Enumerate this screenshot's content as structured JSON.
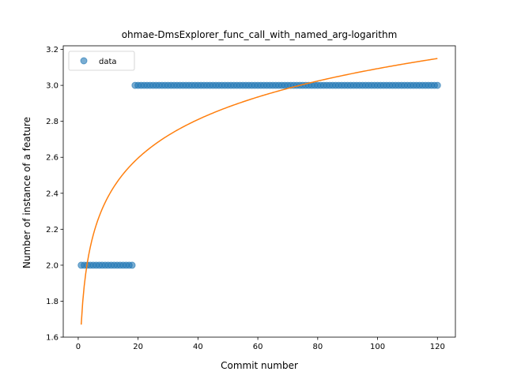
{
  "chart_data": {
    "type": "scatter",
    "title": "ohmae-DmsExplorer_func_call_with_named_arg-logarithm",
    "xlabel": "Commit number",
    "ylabel": "Number of instance of a feature",
    "xlim": [
      -5,
      126
    ],
    "ylim": [
      1.6,
      3.22
    ],
    "xticks": [
      0,
      20,
      40,
      60,
      80,
      100,
      120
    ],
    "yticks": [
      1.6,
      1.8,
      2.0,
      2.2,
      2.4,
      2.6,
      2.8,
      3.0,
      3.2
    ],
    "xtick_labels": [
      "0",
      "20",
      "40",
      "60",
      "80",
      "100",
      "120"
    ],
    "ytick_labels": [
      "1.6",
      "1.8",
      "2.0",
      "2.2",
      "2.4",
      "2.6",
      "2.8",
      "3.0",
      "3.2"
    ],
    "grid": false,
    "legend": {
      "position": "top-left",
      "entries": [
        "data"
      ]
    },
    "series": [
      {
        "name": "data",
        "kind": "scatter",
        "color": "#1f77b4",
        "segments": [
          {
            "x_start": 1,
            "x_end": 18,
            "y": 2.0
          },
          {
            "x_start": 19,
            "x_end": 120,
            "y": 3.0
          }
        ]
      },
      {
        "kind": "line",
        "color": "#ff7f0e",
        "function": "logarithmic",
        "a": 1.67,
        "b": 0.309,
        "x_range": [
          1,
          120
        ]
      }
    ]
  }
}
